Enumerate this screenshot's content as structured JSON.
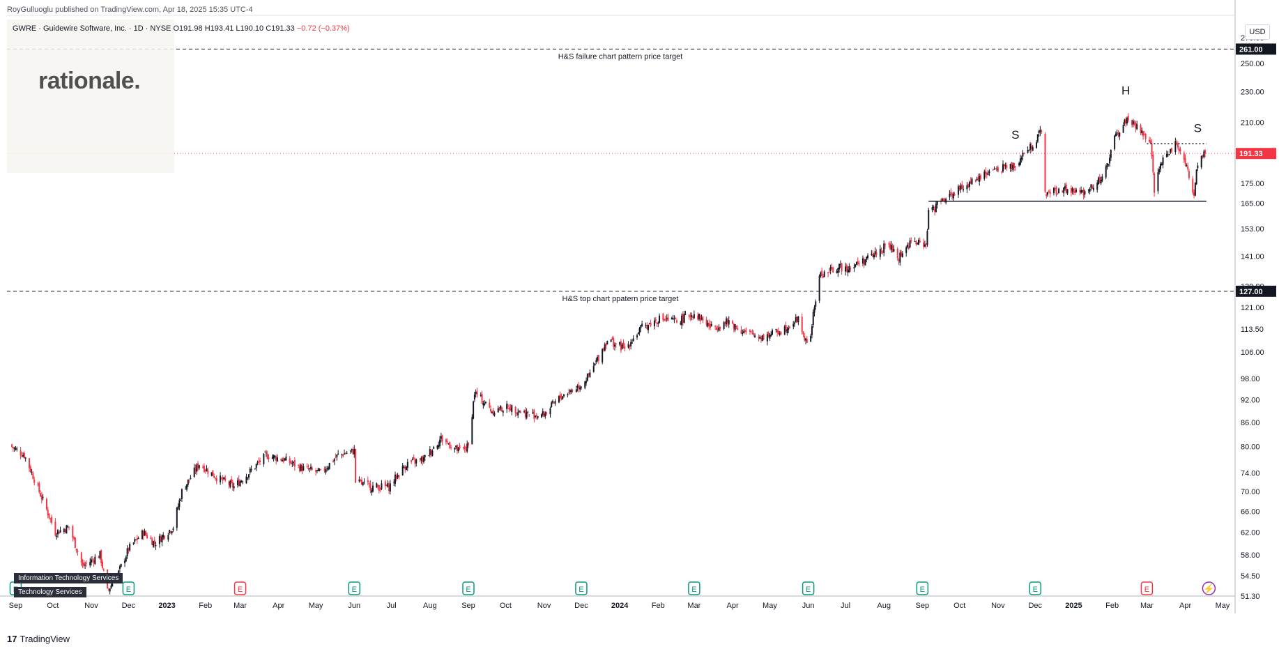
{
  "header": {
    "published": "RoyGulluoglu published on TradingView.com, Apr 18, 2025 15:35 UTC-4",
    "symbol": "GWRE · Guidewire Software, Inc. · 1D · NYSE",
    "open": "O191.98",
    "high": "H193.41",
    "low": "L190.10",
    "close": "C191.33",
    "change": "−0.72 (−0.37%)"
  },
  "logo_text": "rationale.",
  "sector_tags": [
    "Information Technology Services",
    "Technology Services"
  ],
  "currency": "USD",
  "brand": "TradingView",
  "colors": {
    "up": "#131722",
    "down": "#f23645",
    "price_line": "#f23645",
    "axis_text": "#131722"
  },
  "chart_data": {
    "type": "candlestick",
    "symbol": "GWRE",
    "interval": "1D",
    "y_scale": "log",
    "ylim": [
      51.3,
      285.0
    ],
    "y_ticks": [
      51.3,
      54.5,
      58.0,
      62.0,
      66.0,
      70.0,
      74.0,
      80.0,
      86.0,
      92.0,
      98.0,
      106.0,
      113.5,
      121.0,
      129.0,
      141.0,
      153.0,
      165.0,
      175.0,
      191.33,
      210.0,
      230.0,
      250.0,
      261.0,
      270.0
    ],
    "y_tick_labels": [
      "51.30",
      "54.50",
      "58.00",
      "62.00",
      "66.00",
      "70.00",
      "74.00",
      "80.00",
      "86.00",
      "92.00",
      "98.00",
      "106.00",
      "113.50",
      "121.00",
      "129.00",
      "141.00",
      "153.00",
      "165.00",
      "175.00",
      "191.33",
      "210.00",
      "230.00",
      "250.00",
      "261.00",
      "270.00"
    ],
    "x_start": "2022-08-25",
    "x_end": "2025-05-10",
    "x_ticks": [
      {
        "date": "2022-09-01",
        "label": "Sep"
      },
      {
        "date": "2022-10-01",
        "label": "Oct"
      },
      {
        "date": "2022-11-01",
        "label": "Nov"
      },
      {
        "date": "2022-12-01",
        "label": "Dec"
      },
      {
        "date": "2023-01-01",
        "label": "2023",
        "bold": true
      },
      {
        "date": "2023-02-01",
        "label": "Feb"
      },
      {
        "date": "2023-03-01",
        "label": "Mar"
      },
      {
        "date": "2023-04-01",
        "label": "Apr"
      },
      {
        "date": "2023-05-01",
        "label": "May"
      },
      {
        "date": "2023-06-01",
        "label": "Jun"
      },
      {
        "date": "2023-07-01",
        "label": "Jul"
      },
      {
        "date": "2023-08-01",
        "label": "Aug"
      },
      {
        "date": "2023-09-01",
        "label": "Sep"
      },
      {
        "date": "2023-10-01",
        "label": "Oct"
      },
      {
        "date": "2023-11-01",
        "label": "Nov"
      },
      {
        "date": "2023-12-01",
        "label": "Dec"
      },
      {
        "date": "2024-01-01",
        "label": "2024",
        "bold": true
      },
      {
        "date": "2024-02-01",
        "label": "Feb"
      },
      {
        "date": "2024-03-01",
        "label": "Mar"
      },
      {
        "date": "2024-04-01",
        "label": "Apr"
      },
      {
        "date": "2024-05-01",
        "label": "May"
      },
      {
        "date": "2024-06-01",
        "label": "Jun"
      },
      {
        "date": "2024-07-01",
        "label": "Jul"
      },
      {
        "date": "2024-08-01",
        "label": "Aug"
      },
      {
        "date": "2024-09-01",
        "label": "Sep"
      },
      {
        "date": "2024-10-01",
        "label": "Oct"
      },
      {
        "date": "2024-11-01",
        "label": "Nov"
      },
      {
        "date": "2024-12-01",
        "label": "Dec"
      },
      {
        "date": "2025-01-01",
        "label": "2025",
        "bold": true
      },
      {
        "date": "2025-02-01",
        "label": "Feb"
      },
      {
        "date": "2025-03-01",
        "label": "Mar"
      },
      {
        "date": "2025-04-01",
        "label": "Apr"
      },
      {
        "date": "2025-05-01",
        "label": "May"
      }
    ],
    "price_path": [
      [
        "2022-08-26",
        80.5
      ],
      [
        "2022-09-08",
        78
      ],
      [
        "2022-09-20",
        70
      ],
      [
        "2022-10-03",
        62
      ],
      [
        "2022-10-14",
        63
      ],
      [
        "2022-10-25",
        56
      ],
      [
        "2022-11-08",
        58
      ],
      [
        "2022-11-14",
        52
      ],
      [
        "2022-11-23",
        55
      ],
      [
        "2022-12-01",
        59
      ],
      [
        "2022-12-13",
        62
      ],
      [
        "2022-12-22",
        60
      ],
      [
        "2023-01-06",
        63
      ],
      [
        "2023-01-13",
        70
      ],
      [
        "2023-01-27",
        76
      ],
      [
        "2023-02-10",
        73
      ],
      [
        "2023-02-24",
        71
      ],
      [
        "2023-03-08",
        74
      ],
      [
        "2023-03-22",
        78
      ],
      [
        "2023-04-05",
        77
      ],
      [
        "2023-04-20",
        75
      ],
      [
        "2023-05-05",
        74
      ],
      [
        "2023-05-19",
        78
      ],
      [
        "2023-06-01",
        79
      ],
      [
        "2023-06-02",
        72
      ],
      [
        "2023-06-15",
        71
      ],
      [
        "2023-06-29",
        71
      ],
      [
        "2023-07-13",
        76
      ],
      [
        "2023-07-27",
        77
      ],
      [
        "2023-08-10",
        82
      ],
      [
        "2023-08-24",
        79
      ],
      [
        "2023-09-01",
        80
      ],
      [
        "2023-09-06",
        94
      ],
      [
        "2023-09-20",
        89
      ],
      [
        "2023-10-04",
        90
      ],
      [
        "2023-10-20",
        88
      ],
      [
        "2023-11-01",
        88
      ],
      [
        "2023-11-15",
        93
      ],
      [
        "2023-11-30",
        96
      ],
      [
        "2023-12-08",
        99
      ],
      [
        "2023-12-22",
        110
      ],
      [
        "2024-01-05",
        107
      ],
      [
        "2024-01-19",
        114
      ],
      [
        "2024-02-02",
        117
      ],
      [
        "2024-02-16",
        116
      ],
      [
        "2024-03-01",
        119
      ],
      [
        "2024-03-15",
        114
      ],
      [
        "2024-03-29",
        116
      ],
      [
        "2024-04-12",
        112
      ],
      [
        "2024-04-26",
        111
      ],
      [
        "2024-05-10",
        113
      ],
      [
        "2024-05-24",
        117
      ],
      [
        "2024-05-31",
        108
      ],
      [
        "2024-06-03",
        112
      ],
      [
        "2024-06-10",
        133
      ],
      [
        "2024-06-24",
        136
      ],
      [
        "2024-07-08",
        137
      ],
      [
        "2024-07-22",
        141
      ],
      [
        "2024-08-05",
        146
      ],
      [
        "2024-08-12",
        140
      ],
      [
        "2024-08-23",
        147
      ],
      [
        "2024-09-04",
        146
      ],
      [
        "2024-09-06",
        160
      ],
      [
        "2024-09-20",
        168
      ],
      [
        "2024-10-04",
        173
      ],
      [
        "2024-10-18",
        179
      ],
      [
        "2024-11-01",
        183
      ],
      [
        "2024-11-15",
        185
      ],
      [
        "2024-11-29",
        197
      ],
      [
        "2024-12-06",
        204
      ],
      [
        "2024-12-09",
        170
      ],
      [
        "2024-12-23",
        172
      ],
      [
        "2025-01-07",
        170
      ],
      [
        "2025-01-21",
        176
      ],
      [
        "2025-01-27",
        182
      ],
      [
        "2025-02-03",
        200
      ],
      [
        "2025-02-13",
        212
      ],
      [
        "2025-02-24",
        205
      ],
      [
        "2025-03-04",
        196
      ],
      [
        "2025-03-07",
        172
      ],
      [
        "2025-03-14",
        188
      ],
      [
        "2025-03-24",
        197
      ],
      [
        "2025-03-31",
        189
      ],
      [
        "2025-04-04",
        178
      ],
      [
        "2025-04-08",
        170
      ],
      [
        "2025-04-11",
        186
      ],
      [
        "2025-04-17",
        191.33
      ]
    ],
    "horizontal_levels": [
      {
        "price": 261.0,
        "label": "H&S failure chart pattern price target",
        "style": "dashed",
        "color": "#131722",
        "badge": "261.00"
      },
      {
        "price": 127.0,
        "label": "H&S top chart ppatern price target",
        "style": "dashed",
        "color": "#131722",
        "badge": "127.00"
      },
      {
        "price": 191.33,
        "label": "",
        "style": "dotted",
        "color": "#f23645",
        "badge": "191.33",
        "badge_bg": "#f23645"
      }
    ],
    "trend_lines": [
      {
        "name": "neckline",
        "from": [
          "2024-09-06",
          166
        ],
        "to": [
          "2025-04-18",
          166
        ],
        "style": "solid"
      },
      {
        "name": "right-shoulder-level",
        "from": [
          "2025-03-01",
          197
        ],
        "to": [
          "2025-04-18",
          197
        ],
        "style": "dotted"
      }
    ],
    "annotations": [
      {
        "text": "S",
        "date": "2024-11-15",
        "price": 200
      },
      {
        "text": "H",
        "date": "2025-02-12",
        "price": 228
      },
      {
        "text": "S",
        "date": "2025-04-11",
        "price": 204
      }
    ],
    "events": [
      {
        "date": "2022-09-01",
        "type": "E"
      },
      {
        "date": "2022-12-01",
        "type": "E"
      },
      {
        "date": "2023-03-01",
        "type": "E",
        "negative": true
      },
      {
        "date": "2023-06-01",
        "type": "E"
      },
      {
        "date": "2023-09-01",
        "type": "E"
      },
      {
        "date": "2023-12-01",
        "type": "E"
      },
      {
        "date": "2024-03-01",
        "type": "E"
      },
      {
        "date": "2024-06-01",
        "type": "E"
      },
      {
        "date": "2024-09-01",
        "type": "E"
      },
      {
        "date": "2024-12-01",
        "type": "E"
      },
      {
        "date": "2025-03-01",
        "type": "E",
        "negative": true
      },
      {
        "date": "2025-04-20",
        "type": "lightning"
      }
    ]
  }
}
